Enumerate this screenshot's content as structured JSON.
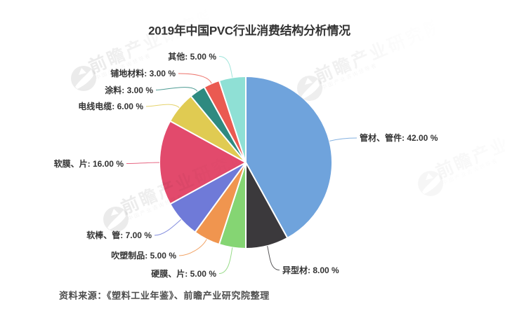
{
  "title": "2019年中国PVC行业消费结构分析情况",
  "source_note": "资料来源：《塑料工业年鉴》、前瞻产业研究院整理",
  "watermark": {
    "logo_icon": "qianzhan-bird-icon",
    "brand_large": "前瞻产业研究院",
    "brand_small": "中国产业咨询领导者"
  },
  "chart_data": {
    "type": "pie",
    "title": "2019年中国PVC行业消费结构分析情况",
    "unit": "%",
    "label_format": "name: value %",
    "legend": "none",
    "start_angle_deg": 0,
    "direction": "clockwise",
    "background": "#ffffff",
    "label_color": "#333333",
    "slices": [
      {
        "name": "管材、管件",
        "value": 42.0,
        "label": "管材、管件: 42.00 %",
        "color": "#6fa3dc"
      },
      {
        "name": "异型材",
        "value": 8.0,
        "label": "异型材: 8.00 %",
        "color": "#3b393c"
      },
      {
        "name": "硬膜、片",
        "value": 5.0,
        "label": "硬膜、片: 5.00 %",
        "color": "#85d573"
      },
      {
        "name": "吹塑制品",
        "value": 5.0,
        "label": "吹塑制品: 5.00 %",
        "color": "#f0954f"
      },
      {
        "name": "软棒、管",
        "value": 7.0,
        "label": "软棒、管: 7.00 %",
        "color": "#6f7ad8"
      },
      {
        "name": "软膜、片",
        "value": 16.0,
        "label": "软膜、片: 16.00 %",
        "color": "#e24a6c"
      },
      {
        "name": "电线电缆",
        "value": 6.0,
        "label": "电线电缆: 6.00 %",
        "color": "#e0cb52"
      },
      {
        "name": "涂料",
        "value": 3.0,
        "label": "涂料: 3.00 %",
        "color": "#2e8a80"
      },
      {
        "name": "铺地材料",
        "value": 3.0,
        "label": "铺地材料: 3.00 %",
        "color": "#ea5a51"
      },
      {
        "name": "其他",
        "value": 5.0,
        "label": "其他: 5.00 %",
        "color": "#8fe0d5"
      }
    ]
  }
}
